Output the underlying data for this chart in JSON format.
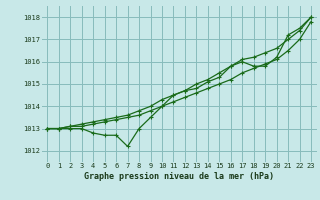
{
  "title": "Graphe pression niveau de la mer (hPa)",
  "bg_color": "#c8e8e8",
  "grid_color": "#88bbbb",
  "line_color": "#1a6b1a",
  "xlim": [
    -0.5,
    23.5
  ],
  "ylim": [
    1011.5,
    1018.5
  ],
  "yticks": [
    1012,
    1013,
    1014,
    1015,
    1016,
    1017,
    1018
  ],
  "xticks": [
    0,
    1,
    2,
    3,
    4,
    5,
    6,
    7,
    8,
    9,
    10,
    11,
    12,
    13,
    14,
    15,
    16,
    17,
    18,
    19,
    20,
    21,
    22,
    23
  ],
  "series1": [
    1013.0,
    1013.0,
    1013.0,
    1013.0,
    1012.8,
    1012.7,
    1012.7,
    1012.2,
    1013.0,
    1013.5,
    1014.0,
    1014.5,
    1014.7,
    1014.8,
    1015.1,
    1015.3,
    1015.8,
    1016.0,
    1015.8,
    1015.8,
    1016.2,
    1017.2,
    1017.5,
    1018.0
  ],
  "series2": [
    1013.0,
    1013.0,
    1013.1,
    1013.1,
    1013.2,
    1013.3,
    1013.4,
    1013.5,
    1013.6,
    1013.8,
    1014.0,
    1014.2,
    1014.4,
    1014.6,
    1014.8,
    1015.0,
    1015.2,
    1015.5,
    1015.7,
    1015.9,
    1016.1,
    1016.5,
    1017.0,
    1017.8
  ],
  "series3": [
    1013.0,
    1013.0,
    1013.1,
    1013.2,
    1013.3,
    1013.4,
    1013.5,
    1013.6,
    1013.8,
    1014.0,
    1014.3,
    1014.5,
    1014.7,
    1015.0,
    1015.2,
    1015.5,
    1015.8,
    1016.1,
    1016.2,
    1016.4,
    1016.6,
    1017.0,
    1017.4,
    1018.0
  ]
}
